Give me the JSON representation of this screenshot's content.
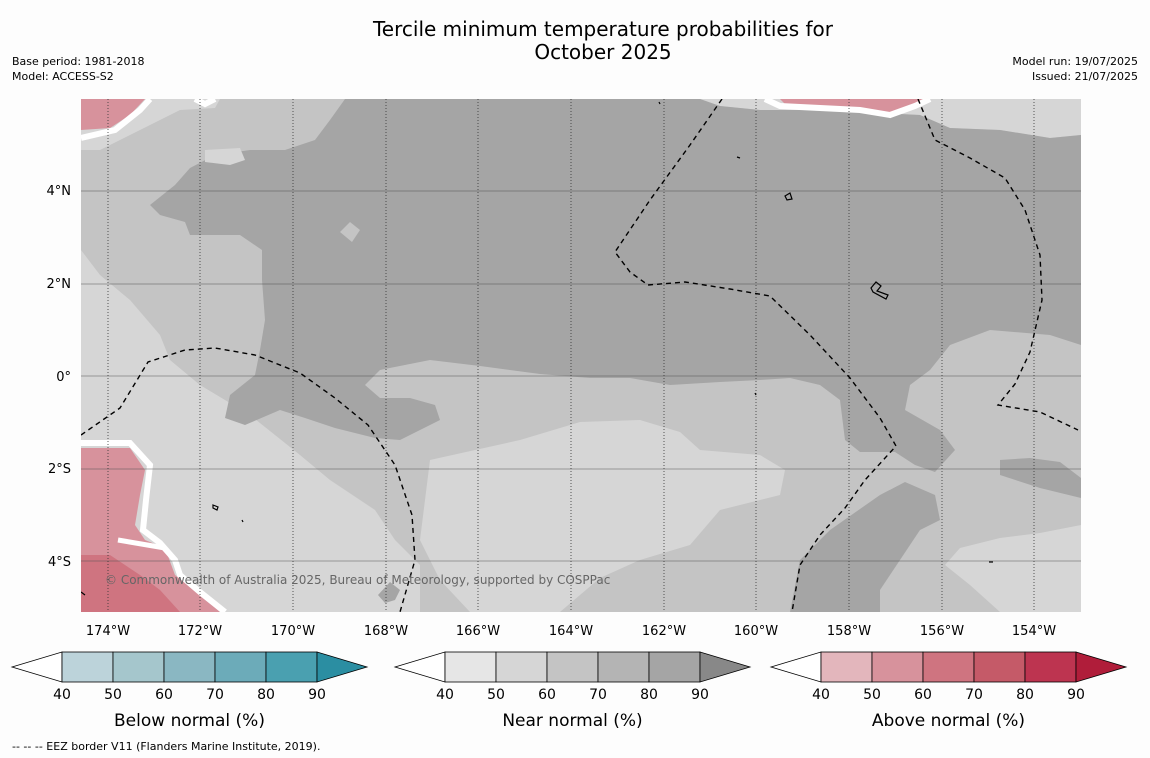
{
  "title": {
    "line1": "Tercile minimum temperature probabilities for",
    "line2": "October 2025"
  },
  "meta_left": {
    "base_period": "Base period: 1981-2018",
    "model": "Model: ACCESS-S2"
  },
  "meta_right": {
    "model_run": "Model run: 19/07/2025",
    "issued": "Issued: 21/07/2025"
  },
  "map": {
    "lon_range": [
      -175.0,
      -152.5
    ],
    "lat_range": [
      -5.0,
      6.0
    ],
    "lon_ticks": [
      "174°W",
      "172°W",
      "170°W",
      "168°W",
      "166°W",
      "164°W",
      "162°W",
      "160°W",
      "158°W",
      "156°W",
      "154°W"
    ],
    "lat_ticks": [
      "4°N",
      "2°N",
      "0°",
      "2°S",
      "4°S"
    ],
    "copyright": "© Commonwealth of Australia 2025, Bureau of Meteorology, supported by COSPPac",
    "fill_colors": {
      "near_50": "#d6d6d6",
      "near_60": "#c4c4c4",
      "near_80": "#a5a5a5",
      "above_50": "#d7929c",
      "above_60": "#cf7480"
    }
  },
  "colorbars": [
    {
      "id": "below",
      "title": "Below normal (%)",
      "ticks": [
        "40",
        "50",
        "60",
        "70",
        "80",
        "90"
      ],
      "colors": [
        "#ffffff",
        "#bcd3da",
        "#a5c6cc",
        "#8ab7c2",
        "#6cabb9",
        "#4aa0b0",
        "#2b8ea2"
      ]
    },
    {
      "id": "near",
      "title": "Near normal (%)",
      "ticks": [
        "40",
        "50",
        "60",
        "70",
        "80",
        "90"
      ],
      "colors": [
        "#ffffff",
        "#e6e6e6",
        "#d6d6d6",
        "#c4c4c4",
        "#b4b4b4",
        "#a5a5a5",
        "#888888"
      ]
    },
    {
      "id": "above",
      "title": "Above normal (%)",
      "ticks": [
        "40",
        "50",
        "60",
        "70",
        "80",
        "90"
      ],
      "colors": [
        "#ffffff",
        "#e3b6bc",
        "#d7929c",
        "#cf7480",
        "#c55a68",
        "#bd3450",
        "#b01d3a"
      ]
    }
  ],
  "footnote": "--  --  -- EEZ border V11 (Flanders Marine Institute, 2019)."
}
